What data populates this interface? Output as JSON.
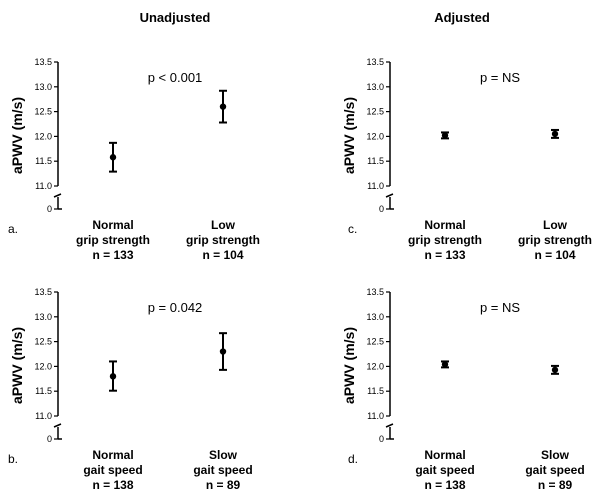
{
  "titles": {
    "left": "Unadjusted",
    "right": "Adjusted"
  },
  "chart_data": [
    {
      "type": "scatter",
      "panel_label": "a.",
      "annotation": "p < 0.001",
      "ylabel": "aPWV (m/s)",
      "yticks": [
        "13.5",
        "13.0",
        "12.5",
        "12.0",
        "11.5",
        "11.0",
        "0"
      ],
      "ylim": [
        11.0,
        13.5
      ],
      "axis_break": true,
      "categories": [
        {
          "line1": "Normal",
          "line2": "grip strength",
          "n": "n = 133"
        },
        {
          "line1": "Low",
          "line2": "grip strength",
          "n": "n = 104"
        }
      ],
      "means": [
        11.58,
        12.6
      ],
      "upper": [
        11.87,
        12.92
      ],
      "lower": [
        11.29,
        12.28
      ]
    },
    {
      "type": "scatter",
      "panel_label": "c.",
      "annotation": "p = NS",
      "ylabel": "aPWV (m/s)",
      "yticks": [
        "13.5",
        "13.0",
        "12.5",
        "12.0",
        "11.5",
        "11.0",
        "0"
      ],
      "ylim": [
        11.0,
        13.5
      ],
      "axis_break": true,
      "categories": [
        {
          "line1": "Normal",
          "line2": "grip strength",
          "n": "n = 133"
        },
        {
          "line1": "Low",
          "line2": "grip strength",
          "n": "n = 104"
        }
      ],
      "means": [
        12.02,
        12.05
      ],
      "upper": [
        12.08,
        12.13
      ],
      "lower": [
        11.96,
        11.97
      ]
    },
    {
      "type": "scatter",
      "panel_label": "b.",
      "annotation": "p = 0.042",
      "ylabel": "aPWV (m/s)",
      "yticks": [
        "13.5",
        "13.0",
        "12.5",
        "12.0",
        "11.5",
        "11.0",
        "0"
      ],
      "ylim": [
        11.0,
        13.5
      ],
      "axis_break": true,
      "categories": [
        {
          "line1": "Normal",
          "line2": "gait speed",
          "n": "n = 138"
        },
        {
          "line1": "Slow",
          "line2": "gait speed",
          "n": "n = 89"
        }
      ],
      "means": [
        11.8,
        12.3
      ],
      "upper": [
        12.1,
        12.67
      ],
      "lower": [
        11.51,
        11.93
      ]
    },
    {
      "type": "scatter",
      "panel_label": "d.",
      "annotation": "p = NS",
      "ylabel": "aPWV (m/s)",
      "yticks": [
        "13.5",
        "13.0",
        "12.5",
        "12.0",
        "11.5",
        "11.0",
        "0"
      ],
      "ylim": [
        11.0,
        13.5
      ],
      "axis_break": true,
      "categories": [
        {
          "line1": "Normal",
          "line2": "gait speed",
          "n": "n = 138"
        },
        {
          "line1": "Slow",
          "line2": "gait speed",
          "n": "n = 89"
        }
      ],
      "means": [
        12.04,
        11.93
      ],
      "upper": [
        12.1,
        12.01
      ],
      "lower": [
        11.98,
        11.85
      ]
    }
  ]
}
